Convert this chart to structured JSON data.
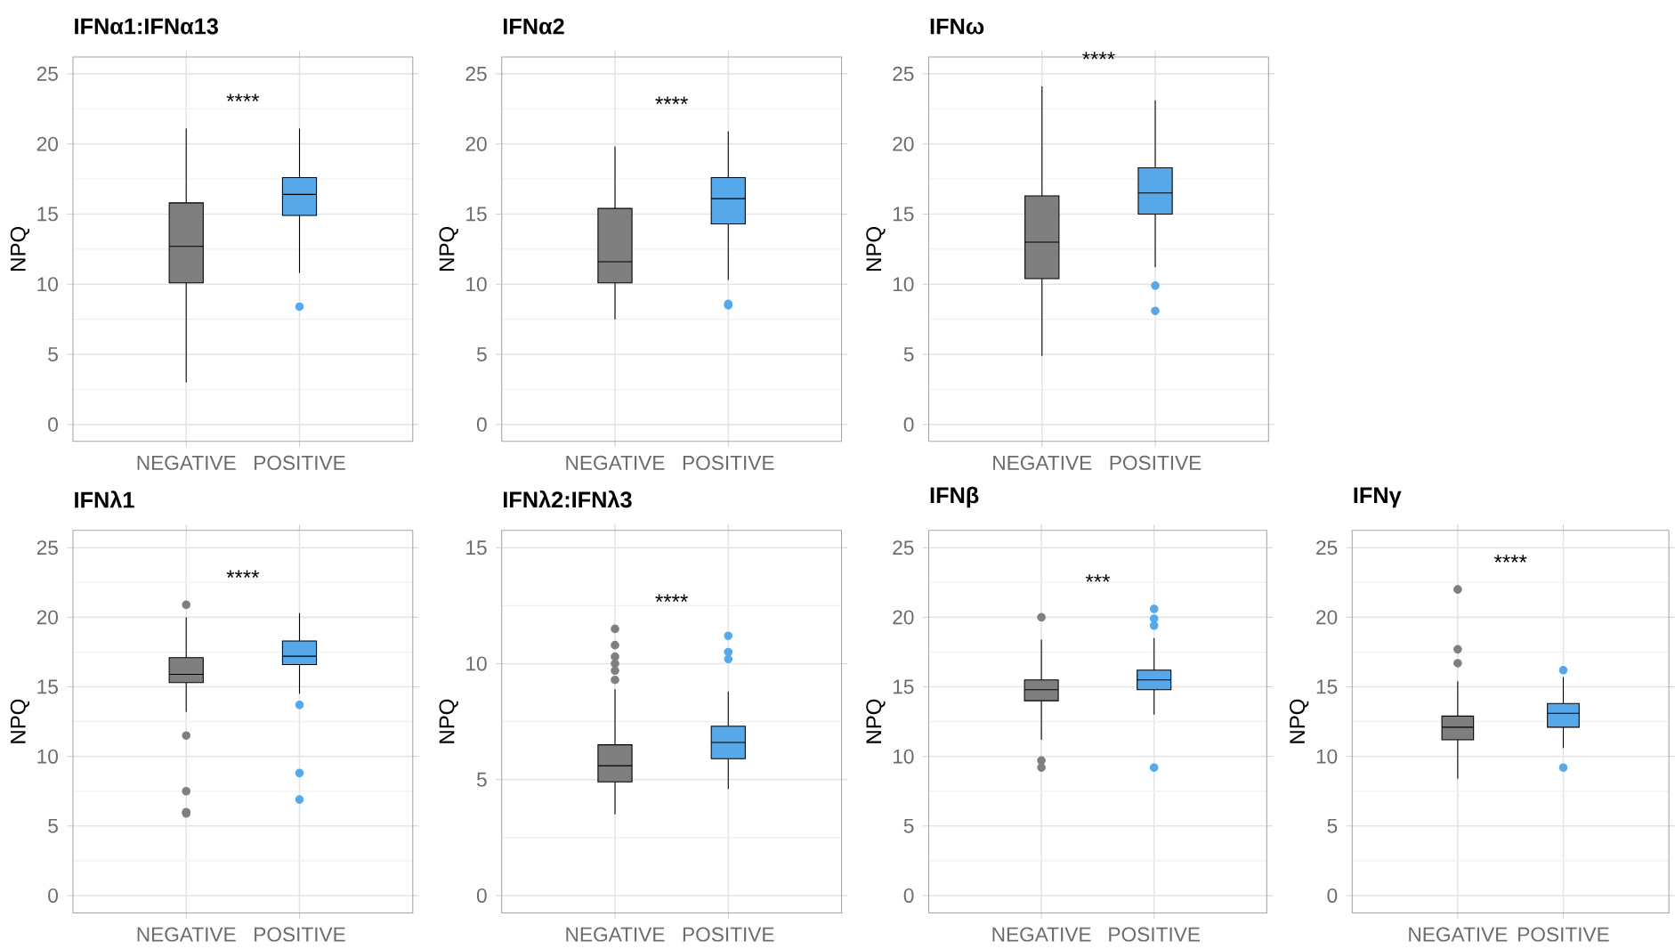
{
  "chart_data": [
    {
      "type": "box",
      "title": "IFNα1:IFNα13",
      "ylabel": "NPQ",
      "categories": [
        "NEGATIVE",
        "POSITIVE"
      ],
      "colors": [
        "#7f7f7f",
        "#56a8e8"
      ],
      "ylim": [
        -1.2,
        26.2
      ],
      "yticks": [
        0,
        5,
        10,
        15,
        20,
        25
      ],
      "grid": true,
      "annotations": [
        "****"
      ],
      "boxes": [
        {
          "low": 3,
          "q1": 10.1,
          "median": 12.7,
          "q3": 15.8,
          "high": 21.1
        },
        {
          "low": 10.8,
          "q1": 14.9,
          "median": 16.4,
          "q3": 17.6,
          "high": 21.1,
          "outliers": [
            8.4
          ]
        }
      ]
    },
    {
      "type": "box",
      "title": "IFNα2",
      "ylabel": "NPQ",
      "categories": [
        "NEGATIVE",
        "POSITIVE"
      ],
      "colors": [
        "#7f7f7f",
        "#56a8e8"
      ],
      "ylim": [
        -1.2,
        26.2
      ],
      "yticks": [
        0,
        5,
        10,
        15,
        20,
        25
      ],
      "grid": true,
      "annotations": [
        "****"
      ],
      "boxes": [
        {
          "low": 7.5,
          "q1": 10.1,
          "median": 11.6,
          "q3": 15.4,
          "high": 19.8
        },
        {
          "low": 10.3,
          "q1": 14.3,
          "median": 16.1,
          "q3": 17.6,
          "high": 20.9,
          "outliers": [
            8.5,
            8.6
          ]
        }
      ]
    },
    {
      "type": "box",
      "title": "IFNω",
      "ylabel": "NPQ",
      "categories": [
        "NEGATIVE",
        "POSITIVE"
      ],
      "colors": [
        "#7f7f7f",
        "#56a8e8"
      ],
      "ylim": [
        -1.2,
        26.2
      ],
      "yticks": [
        0,
        5,
        10,
        15,
        20,
        25
      ],
      "grid": true,
      "annotations": [
        "****"
      ],
      "boxes": [
        {
          "low": 4.9,
          "q1": 10.4,
          "median": 13.0,
          "q3": 16.3,
          "high": 24.1
        },
        {
          "low": 11.2,
          "q1": 15.0,
          "median": 16.5,
          "q3": 18.3,
          "high": 23.1,
          "outliers": [
            9.9,
            8.1
          ]
        }
      ]
    },
    {
      "type": "box",
      "title": "IFNλ1",
      "ylabel": "NPQ",
      "categories": [
        "NEGATIVE",
        "POSITIVE"
      ],
      "colors": [
        "#7f7f7f",
        "#56a8e8"
      ],
      "ylim": [
        -1.25,
        26.25
      ],
      "yticks": [
        0,
        5,
        10,
        15,
        20,
        25
      ],
      "grid": true,
      "annotations": [
        "****"
      ],
      "boxes": [
        {
          "low": 13.2,
          "q1": 15.3,
          "median": 15.9,
          "q3": 17.1,
          "high": 20.0,
          "outliers": [
            20.9,
            11.5,
            7.5,
            6.0,
            5.9
          ]
        },
        {
          "low": 14.5,
          "q1": 16.6,
          "median": 17.2,
          "q3": 18.3,
          "high": 20.3,
          "outliers": [
            13.7,
            8.8,
            6.9
          ]
        }
      ]
    },
    {
      "type": "box",
      "title": "IFNλ2:IFNλ3",
      "ylabel": "NPQ",
      "categories": [
        "NEGATIVE",
        "POSITIVE"
      ],
      "colors": [
        "#7f7f7f",
        "#56a8e8"
      ],
      "ylim": [
        -0.75,
        15.75
      ],
      "yticks": [
        0,
        5,
        10,
        15
      ],
      "grid": true,
      "annotations": [
        "****"
      ],
      "boxes": [
        {
          "low": 3.5,
          "q1": 4.9,
          "median": 5.6,
          "q3": 6.5,
          "high": 8.9,
          "outliers": [
            9.3,
            9.7,
            10.0,
            10.3,
            10.8,
            11.5
          ]
        },
        {
          "low": 4.6,
          "q1": 5.9,
          "median": 6.6,
          "q3": 7.3,
          "high": 8.8,
          "outliers": [
            10.2,
            10.5,
            11.2
          ]
        }
      ]
    },
    {
      "type": "box",
      "title": "IFNβ",
      "ylabel": "NPQ",
      "categories": [
        "NEGATIVE",
        "POSITIVE"
      ],
      "colors": [
        "#7f7f7f",
        "#56a8e8"
      ],
      "ylim": [
        -1.25,
        26.25
      ],
      "yticks": [
        0,
        5,
        10,
        15,
        20,
        25
      ],
      "grid": true,
      "annotations": [
        "***"
      ],
      "boxes": [
        {
          "low": 11.2,
          "q1": 14.0,
          "median": 14.8,
          "q3": 15.5,
          "high": 18.4,
          "outliers": [
            20.0,
            9.7,
            9.2
          ]
        },
        {
          "low": 13.0,
          "q1": 14.8,
          "median": 15.5,
          "q3": 16.2,
          "high": 18.5,
          "outliers": [
            19.4,
            19.9,
            20.6,
            9.2
          ]
        }
      ]
    },
    {
      "type": "box",
      "title": "IFNγ",
      "ylabel": "NPQ",
      "categories": [
        "NEGATIVE",
        "POSITIVE"
      ],
      "colors": [
        "#7f7f7f",
        "#56a8e8"
      ],
      "ylim": [
        -1.25,
        26.25
      ],
      "yticks": [
        0,
        5,
        10,
        15,
        20,
        25
      ],
      "grid": true,
      "annotations": [
        "****"
      ],
      "boxes": [
        {
          "low": 8.4,
          "q1": 11.2,
          "median": 12.1,
          "q3": 12.9,
          "high": 15.4,
          "outliers": [
            16.7,
            17.7,
            22.0
          ]
        },
        {
          "low": 10.6,
          "q1": 12.1,
          "median": 13.1,
          "q3": 13.8,
          "high": 15.7,
          "outliers": [
            16.2,
            9.2
          ]
        }
      ]
    }
  ]
}
